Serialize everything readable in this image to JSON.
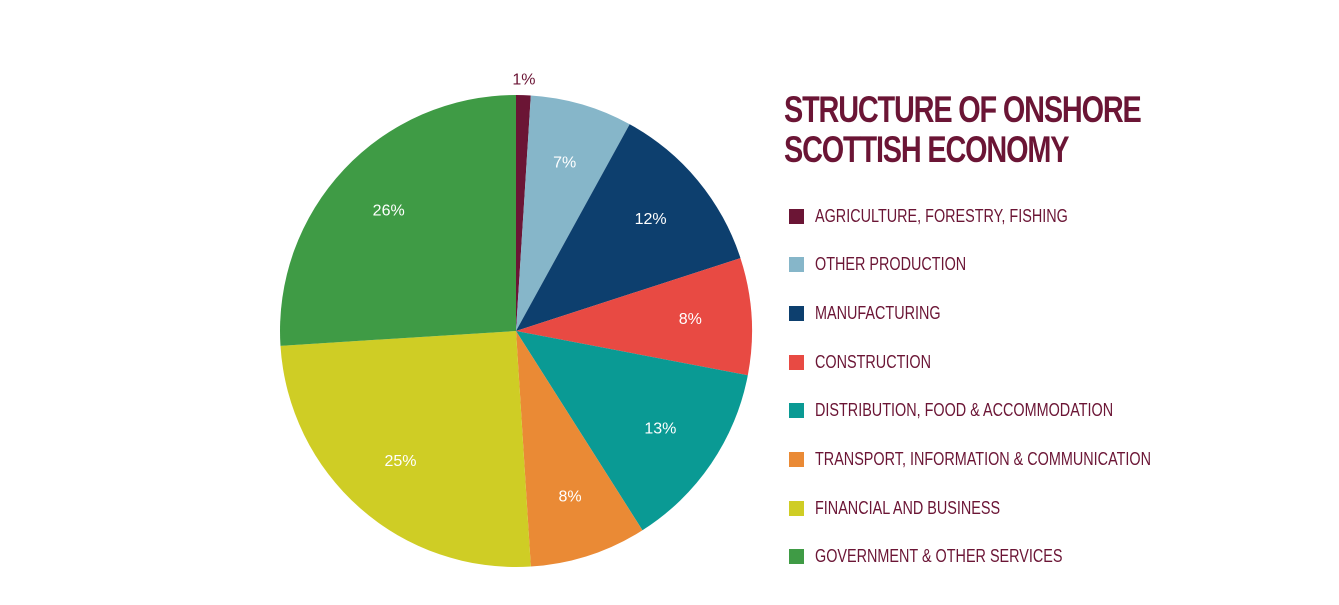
{
  "chart_data": {
    "type": "pie",
    "title": "STRUCTURE OF ONSHORE SCOTTISH ECONOMY",
    "title_lines": [
      "STRUCTURE OF ONSHORE",
      "SCOTTISH ECONOMY"
    ],
    "categories": [
      "AGRICULTURE, FORESTRY, FISHING",
      "OTHER PRODUCTION",
      "MANUFACTURING",
      "CONSTRUCTION",
      "DISTRIBUTION, FOOD & ACCOMMODATION",
      "TRANSPORT, INFORMATION & COMMUNICATION",
      "FINANCIAL AND BUSINESS",
      "GOVERNMENT & OTHER SERVICES"
    ],
    "values": [
      1,
      7,
      12,
      8,
      13,
      8,
      25,
      26
    ],
    "data_labels": [
      "1%",
      "7%",
      "12%",
      "8%",
      "13%",
      "8%",
      "25%",
      "26%"
    ],
    "colors": [
      "#6b1535",
      "#86b6c9",
      "#0d3f6e",
      "#e84a43",
      "#0a9a94",
      "#ea8a35",
      "#cfcd25",
      "#3f9b45"
    ],
    "legend_position": "right"
  }
}
